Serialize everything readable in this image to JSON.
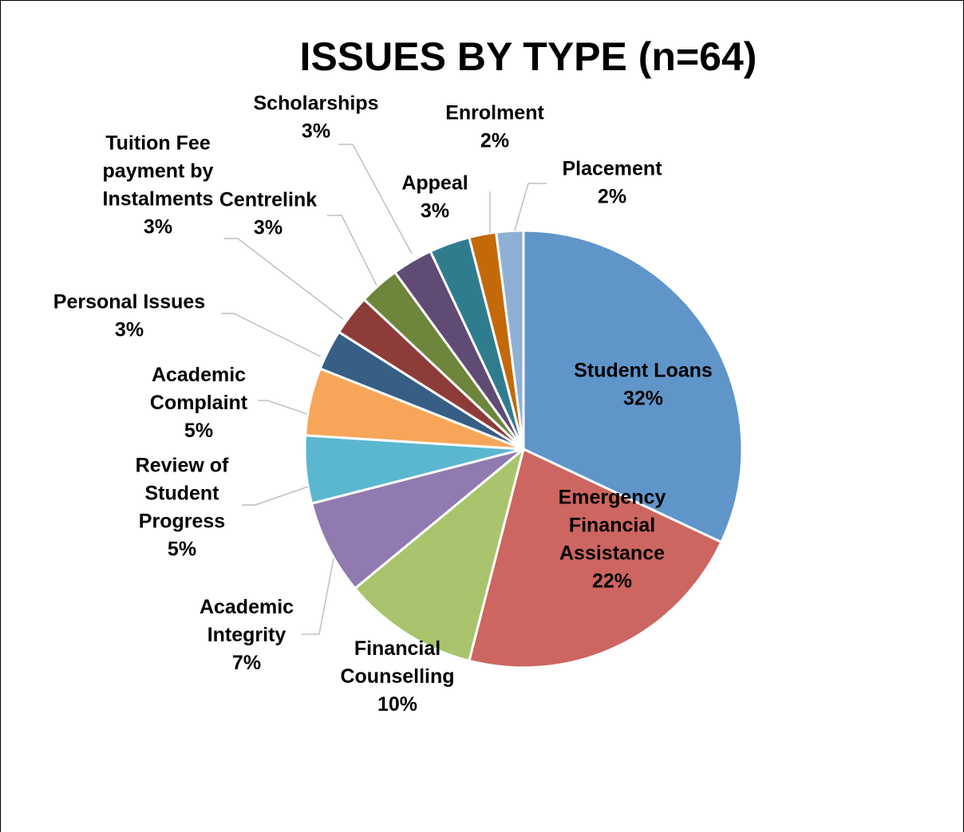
{
  "chart_data": {
    "type": "pie",
    "title": "ISSUES BY TYPE (n=64)",
    "slices": [
      {
        "label": "Student Loans",
        "percent_label": "32%",
        "value": 32,
        "color": "#6095c9"
      },
      {
        "label": "Emergency Financial Assistance",
        "label_lines": [
          "Emergency",
          "Financial",
          "Assistance"
        ],
        "percent_label": "22%",
        "value": 22,
        "color": "#cd6560"
      },
      {
        "label": "Financial Counselling",
        "label_lines": [
          "Financial",
          "Counselling"
        ],
        "percent_label": "10%",
        "value": 10,
        "color": "#a9c46d"
      },
      {
        "label": "Academic Integrity",
        "label_lines": [
          "Academic",
          "Integrity"
        ],
        "percent_label": "7%",
        "value": 7,
        "color": "#917aaf"
      },
      {
        "label": "Review of Student Progress",
        "label_lines": [
          "Review of",
          "Student",
          "Progress"
        ],
        "percent_label": "5%",
        "value": 5,
        "color": "#5bb7d0"
      },
      {
        "label": "Academic Complaint",
        "label_lines": [
          "Academic",
          "Complaint"
        ],
        "percent_label": "5%",
        "value": 5,
        "color": "#f7a659"
      },
      {
        "label": "Personal Issues",
        "percent_label": "3%",
        "value": 3,
        "color": "#375e85"
      },
      {
        "label": "Tuition Fee payment by Instalments",
        "label_lines": [
          "Tuition Fee",
          "payment by",
          "Instalments"
        ],
        "percent_label": "3%",
        "value": 3,
        "color": "#8e3c3a"
      },
      {
        "label": "Centrelink",
        "percent_label": "3%",
        "value": 3,
        "color": "#6e853c"
      },
      {
        "label": "Scholarships",
        "percent_label": "3%",
        "value": 3,
        "color": "#5f4b73"
      },
      {
        "label": "Appeal",
        "percent_label": "3%",
        "value": 3,
        "color": "#307c8f"
      },
      {
        "label": "Enrolment",
        "percent_label": "2%",
        "value": 2,
        "color": "#c4690a"
      },
      {
        "label": "Placement",
        "percent_label": "2%",
        "value": 2,
        "color": "#8fb0d5"
      }
    ]
  }
}
